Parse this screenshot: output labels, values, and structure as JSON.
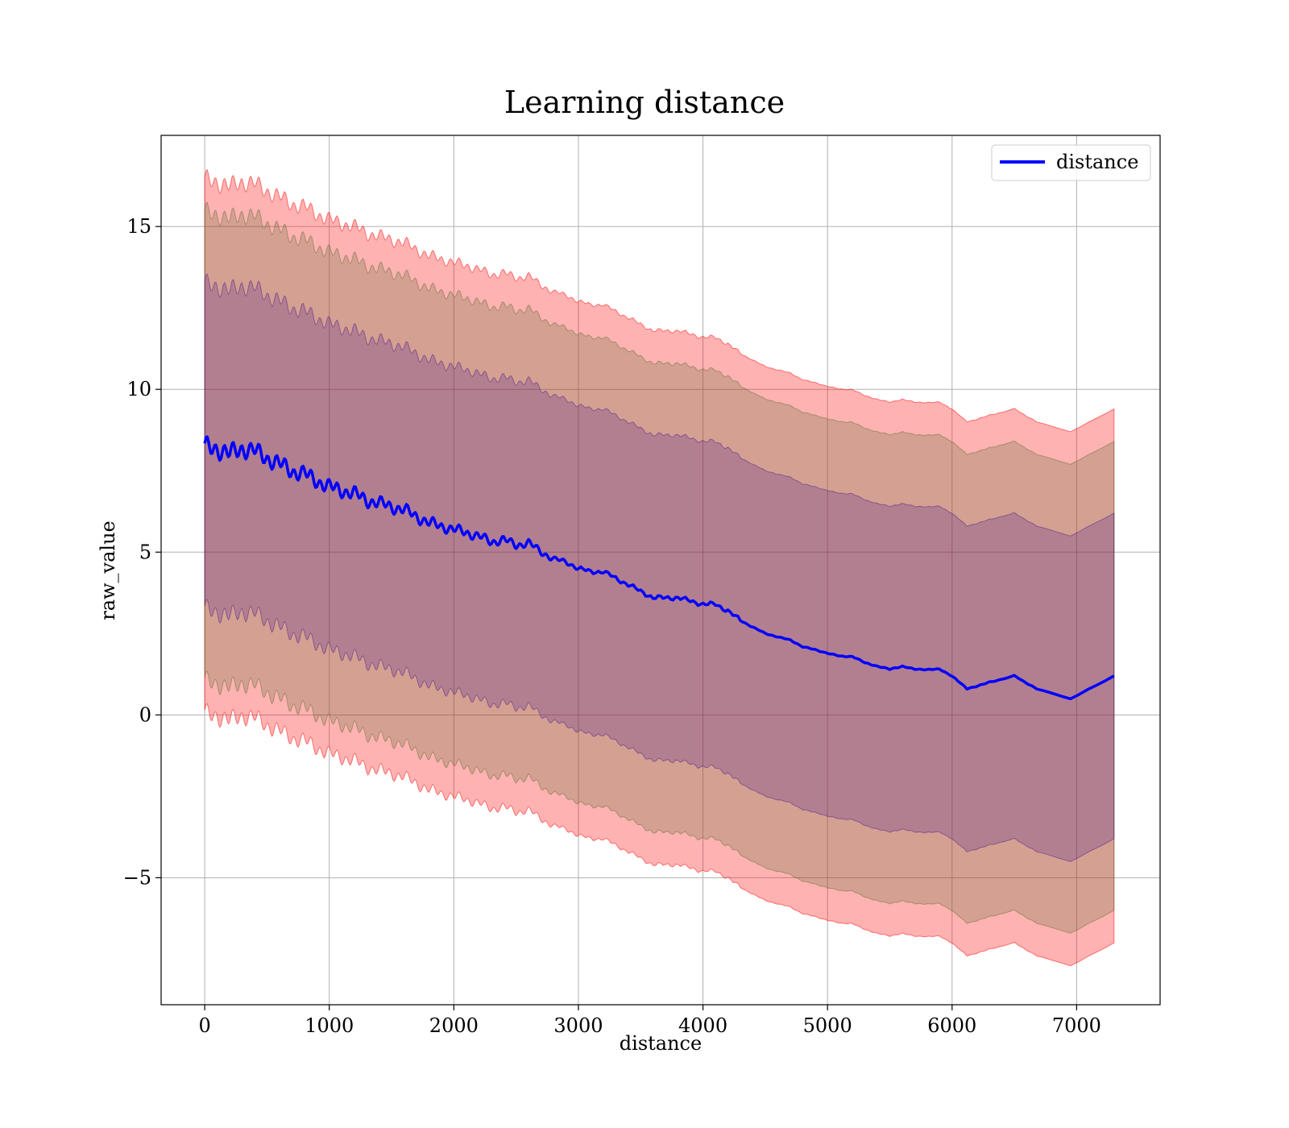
{
  "chart_data": {
    "type": "line",
    "title": "Learning distance",
    "xlabel": "distance",
    "ylabel": "raw_value",
    "xlim": [
      -350,
      7670
    ],
    "ylim": [
      -8.9,
      17.8
    ],
    "xticks": [
      0,
      1000,
      2000,
      3000,
      4000,
      5000,
      6000,
      7000
    ],
    "xtick_labels": [
      "0",
      "1000",
      "2000",
      "3000",
      "4000",
      "5000",
      "6000",
      "7000"
    ],
    "yticks": [
      -5,
      0,
      5,
      10,
      15
    ],
    "ytick_labels": [
      "−5",
      "0",
      "5",
      "10",
      "15"
    ],
    "grid": true,
    "legend_position": "top-right",
    "series": [
      {
        "name": "distance",
        "color": "#0000ff",
        "x": [
          0,
          100,
          200,
          300,
          400,
          500,
          600,
          700,
          800,
          900,
          1000,
          1100,
          1200,
          1300,
          1400,
          1500,
          1600,
          1700,
          1800,
          1900,
          2000,
          2100,
          2200,
          2300,
          2400,
          2500,
          2600,
          2700,
          2800,
          2900,
          3000,
          3100,
          3200,
          3300,
          3400,
          3500,
          3600,
          3700,
          3800,
          3900,
          4000,
          4100,
          4200,
          4300,
          4400,
          4500,
          4600,
          4700,
          4800,
          4900,
          5000,
          5100,
          5200,
          5300,
          5400,
          5500,
          5600,
          5700,
          5800,
          5900,
          6000,
          6120,
          6300,
          6500,
          6680,
          6950,
          7300
        ],
        "values": [
          8.2,
          8.2,
          8.0,
          8.2,
          8.1,
          7.9,
          7.7,
          7.5,
          7.4,
          7.2,
          7.0,
          6.9,
          6.8,
          6.6,
          6.5,
          6.4,
          6.3,
          6.1,
          5.9,
          5.8,
          5.7,
          5.6,
          5.5,
          5.3,
          5.4,
          5.2,
          5.3,
          5.0,
          4.8,
          4.7,
          4.5,
          4.4,
          4.4,
          4.2,
          4.0,
          3.8,
          3.6,
          3.6,
          3.6,
          3.5,
          3.4,
          3.4,
          3.2,
          2.9,
          2.7,
          2.5,
          2.4,
          2.3,
          2.1,
          2.0,
          1.9,
          1.8,
          1.8,
          1.6,
          1.5,
          1.4,
          1.5,
          1.4,
          1.4,
          1.4,
          1.2,
          0.8,
          1.0,
          1.2,
          0.8,
          0.5,
          1.2
        ]
      }
    ],
    "bands": [
      {
        "color": "#ff0000",
        "opacity": 0.3,
        "half_width": 8.2
      },
      {
        "color": "#556b2f",
        "opacity": 0.25,
        "half_width": 7.2
      },
      {
        "color": "#3b0a8c",
        "opacity": 0.22,
        "half_width": 5.0
      }
    ]
  }
}
